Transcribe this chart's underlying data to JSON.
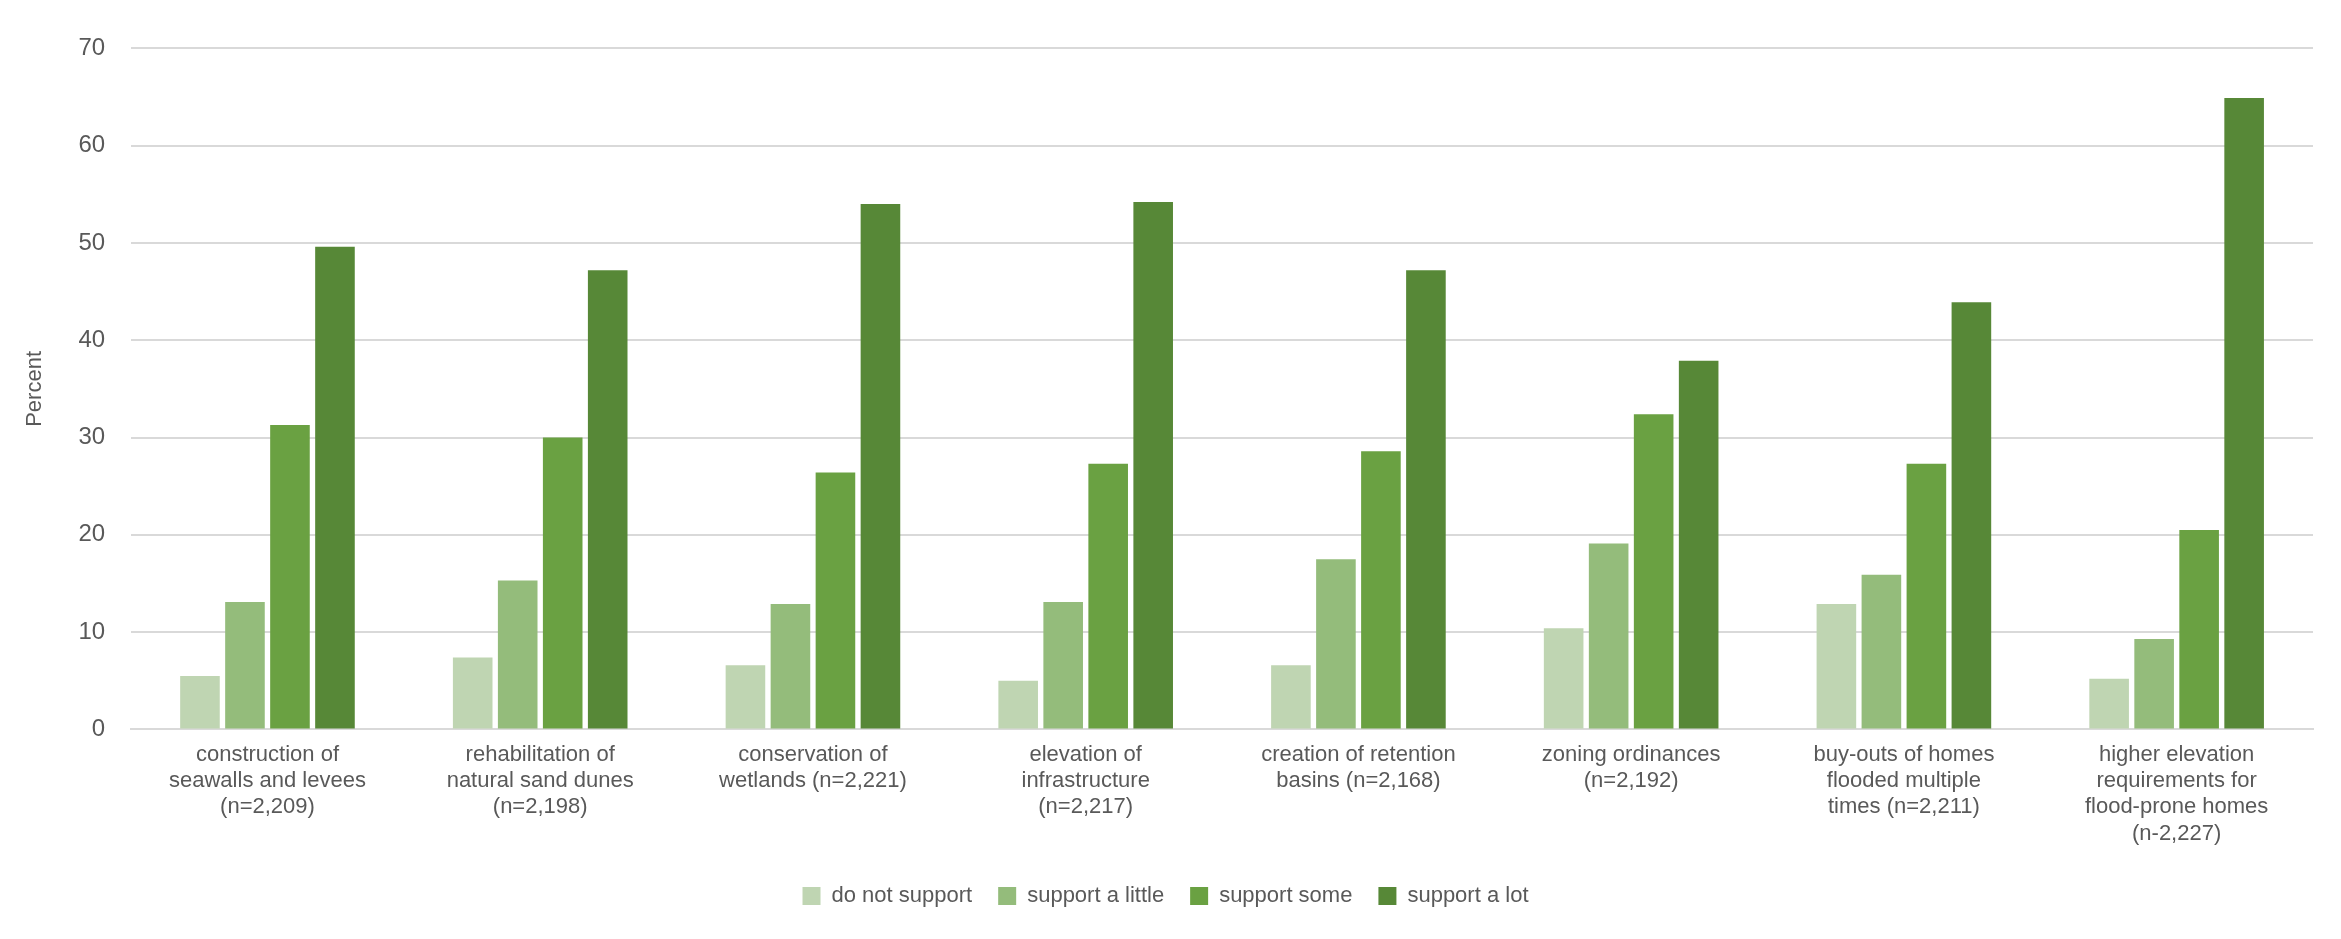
{
  "chart_data": {
    "type": "bar",
    "ylabel": "Percent",
    "categories": [
      "construction of seawalls and levees (n=2,209)",
      "rehabilitation of natural sand dunes (n=2,198)",
      "conservation of wetlands (n=2,221)",
      "elevation of infrastructure (n=2,217)",
      "creation of retention basins (n=2,168)",
      "zoning ordinances (n=2,192)",
      "buy-outs of homes flooded multiple times (n=2,211)",
      "higher elevation requirements for flood-prone homes (n-2,227)"
    ],
    "series": [
      {
        "name": "do not support",
        "color": "#bfd5b2",
        "values": [
          5.5,
          7.4,
          6.6,
          5.0,
          6.6,
          10.4,
          12.9,
          5.2
        ]
      },
      {
        "name": "support a little",
        "color": "#94bc7b",
        "values": [
          13.1,
          15.3,
          12.9,
          13.1,
          17.5,
          19.1,
          15.9,
          9.3
        ]
      },
      {
        "name": "support some",
        "color": "#6aa142",
        "values": [
          31.3,
          30.0,
          26.4,
          27.3,
          28.6,
          32.4,
          27.3,
          20.5
        ]
      },
      {
        "name": "support a lot",
        "color": "#578837",
        "values": [
          49.6,
          47.2,
          54.0,
          54.2,
          47.2,
          37.9,
          43.9,
          64.9
        ]
      }
    ],
    "ylim": [
      0,
      70
    ],
    "yticks": [
      0,
      10,
      20,
      30,
      40,
      50,
      60,
      70
    ],
    "grid": "y",
    "legend": "bottom"
  }
}
